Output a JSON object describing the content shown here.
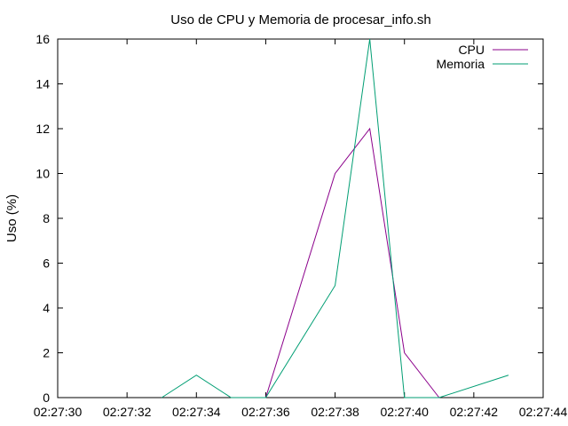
{
  "chart_data": {
    "type": "line",
    "title": "Uso de CPU y Memoria de procesar_info.sh",
    "xlabel": "",
    "ylabel": "Uso (%)",
    "xlim": [
      "02:27:30",
      "02:27:44"
    ],
    "ylim": [
      0,
      16
    ],
    "x_ticks": [
      "02:27:30",
      "02:27:32",
      "02:27:34",
      "02:27:36",
      "02:27:38",
      "02:27:40",
      "02:27:42",
      "02:27:44"
    ],
    "y_ticks": [
      0,
      2,
      4,
      6,
      8,
      10,
      12,
      14,
      16
    ],
    "grid": false,
    "legend_position": "top-right",
    "series": [
      {
        "name": "CPU",
        "color": "#8b008b",
        "points": [
          {
            "x": "02:27:36",
            "y": 0
          },
          {
            "x": "02:27:38",
            "y": 10
          },
          {
            "x": "02:27:39",
            "y": 12
          },
          {
            "x": "02:27:40",
            "y": 2
          },
          {
            "x": "02:27:41",
            "y": 0
          }
        ]
      },
      {
        "name": "Memoria",
        "color": "#009e73",
        "points": [
          {
            "x": "02:27:33",
            "y": 0
          },
          {
            "x": "02:27:34",
            "y": 1
          },
          {
            "x": "02:27:35",
            "y": 0
          },
          {
            "x": "02:27:36",
            "y": 0
          },
          {
            "x": "02:27:38",
            "y": 5
          },
          {
            "x": "02:27:39",
            "y": 16
          },
          {
            "x": "02:27:40",
            "y": 0
          },
          {
            "x": "02:27:41",
            "y": 0
          },
          {
            "x": "02:27:43",
            "y": 1
          }
        ]
      }
    ]
  }
}
